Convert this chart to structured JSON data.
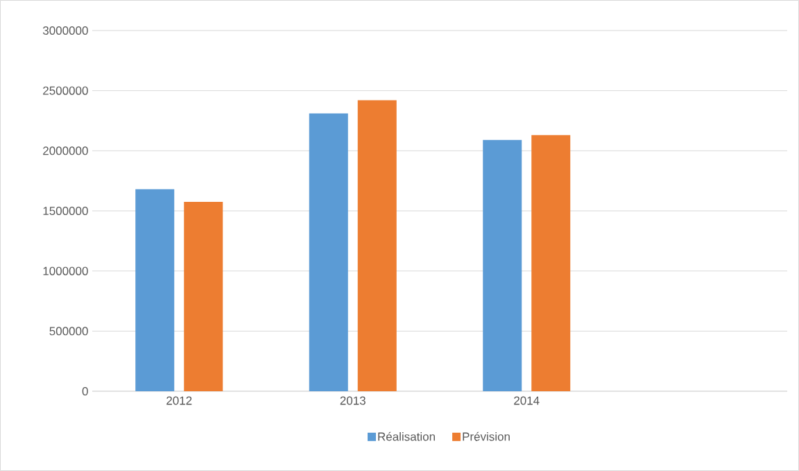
{
  "chart_data": {
    "type": "bar",
    "categories": [
      "2012",
      "2013",
      "2014",
      null
    ],
    "series": [
      {
        "name": "Réalisation",
        "color": "#5b9bd5",
        "values": [
          1680000,
          2310000,
          2090000,
          null
        ]
      },
      {
        "name": "Prévision",
        "color": "#ed7d31",
        "values": [
          1575000,
          2420000,
          2130000,
          null
        ]
      }
    ],
    "ylim": [
      0,
      3000000
    ],
    "yticks": [
      0,
      500000,
      1000000,
      1500000,
      2000000,
      2500000,
      3000000
    ],
    "grid": "y",
    "legend": "bottom"
  }
}
